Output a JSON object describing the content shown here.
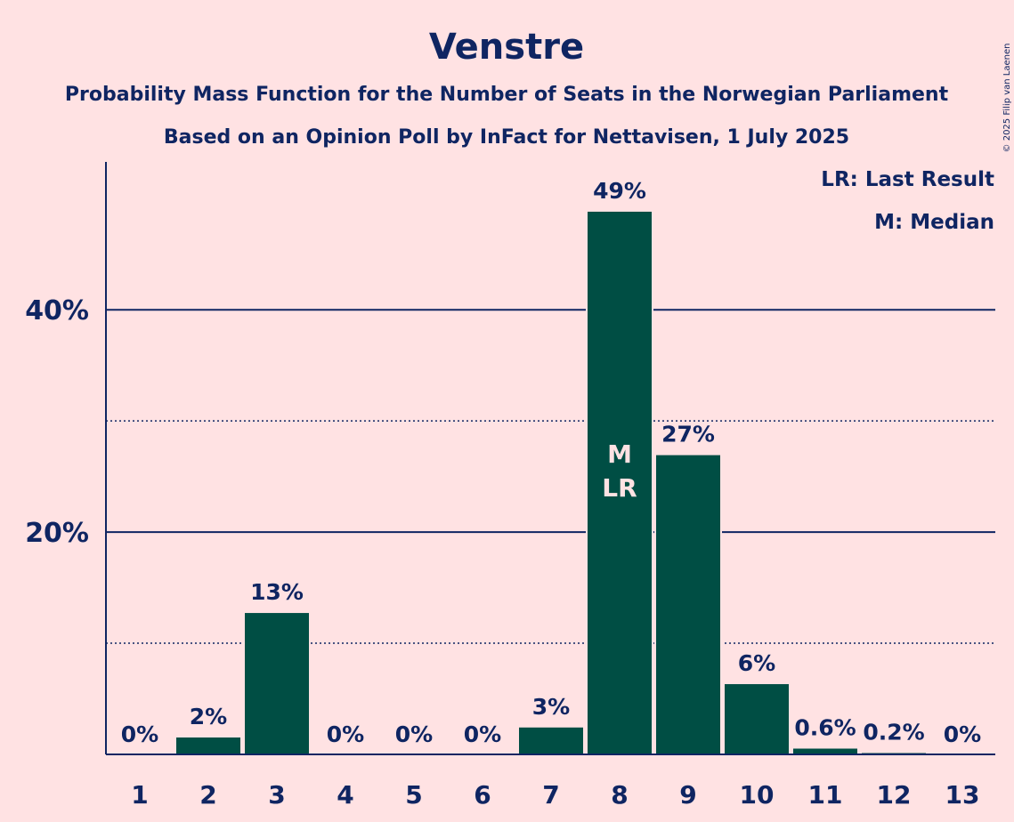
{
  "chart_data": {
    "type": "bar",
    "title": "Venstre",
    "subtitle_1": "Probability Mass Function for the Number of Seats in the Norwegian Parliament",
    "subtitle_2": "Based on an Opinion Poll by InFact for Nettavisen, 1 July 2025",
    "categories": [
      "1",
      "2",
      "3",
      "4",
      "5",
      "6",
      "7",
      "8",
      "9",
      "10",
      "11",
      "12",
      "13"
    ],
    "values": [
      0,
      1.6,
      12.8,
      0,
      0,
      0,
      2.5,
      48.9,
      27.0,
      6.4,
      0.6,
      0.2,
      0
    ],
    "value_labels": [
      "0%",
      "2%",
      "13%",
      "0%",
      "0%",
      "0%",
      "3%",
      "49%",
      "27%",
      "6%",
      "0.6%",
      "0.2%",
      "0%"
    ],
    "ylim": [
      0,
      53.3
    ],
    "major_gridlines": [
      20,
      40
    ],
    "major_tick_labels": [
      "20%",
      "40%"
    ],
    "minor_gridlines": [
      10,
      30
    ],
    "bar_color": "#004e44",
    "median_category": "8",
    "last_result_category": "8",
    "median_marker": "M",
    "last_result_marker": "LR",
    "legend": [
      "LR: Last Result",
      "M: Median"
    ],
    "legend_position": "top-right",
    "copyright": "© 2025 Filip van Laenen"
  }
}
